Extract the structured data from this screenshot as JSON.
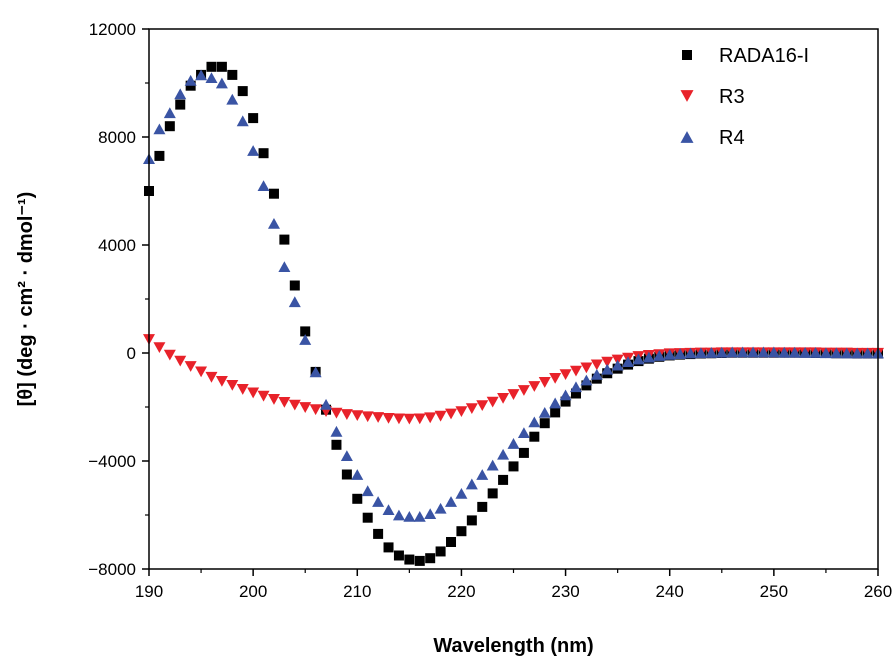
{
  "chart_data": {
    "type": "scatter",
    "title": "",
    "xlabel": "Wavelength (nm)",
    "ylabel": "[θ] (deg · cm² · dmol⁻¹)",
    "xlim": [
      190,
      260
    ],
    "ylim": [
      -8000,
      12000
    ],
    "xticks": [
      190,
      200,
      210,
      220,
      230,
      240,
      250,
      260
    ],
    "yticks": [
      -8000,
      -4000,
      0,
      4000,
      8000,
      12000
    ],
    "x_tick_labels": [
      "190",
      "200",
      "210",
      "220",
      "230",
      "240",
      "250",
      "260"
    ],
    "y_tick_labels": [
      "−8000",
      "−4000",
      "0",
      "4000",
      "8000",
      "12000"
    ],
    "legend_position": "top-right",
    "grid": false,
    "series": [
      {
        "name": "RADA16-I",
        "marker": "square",
        "color": "#000000",
        "x": [
          190,
          191,
          192,
          193,
          194,
          195,
          196,
          197,
          198,
          199,
          200,
          201,
          202,
          203,
          204,
          205,
          206,
          207,
          208,
          209,
          210,
          211,
          212,
          213,
          214,
          215,
          216,
          217,
          218,
          219,
          220,
          221,
          222,
          223,
          224,
          225,
          226,
          227,
          228,
          229,
          230,
          231,
          232,
          233,
          234,
          235,
          236,
          237,
          238,
          239,
          240,
          241,
          242,
          243,
          244,
          245,
          246,
          247,
          248,
          249,
          250,
          251,
          252,
          253,
          254,
          255,
          256,
          257,
          258,
          259,
          260
        ],
        "values": [
          6000,
          7300,
          8400,
          9200,
          9900,
          10300,
          10600,
          10600,
          10300,
          9700,
          8700,
          7400,
          5900,
          4200,
          2500,
          800,
          -700,
          -2100,
          -3400,
          -4500,
          -5400,
          -6100,
          -6700,
          -7200,
          -7500,
          -7650,
          -7700,
          -7600,
          -7350,
          -7000,
          -6600,
          -6200,
          -5700,
          -5200,
          -4700,
          -4200,
          -3700,
          -3100,
          -2600,
          -2200,
          -1800,
          -1500,
          -1200,
          -950,
          -750,
          -580,
          -430,
          -300,
          -210,
          -140,
          -90,
          -60,
          -40,
          -20,
          -10,
          0,
          10,
          10,
          10,
          10,
          10,
          10,
          10,
          10,
          0,
          0,
          -10,
          -10,
          -20,
          -20,
          -20
        ]
      },
      {
        "name": "R3",
        "marker": "triangle-down",
        "color": "#e8222a",
        "x": [
          190,
          191,
          192,
          193,
          194,
          195,
          196,
          197,
          198,
          199,
          200,
          201,
          202,
          203,
          204,
          205,
          206,
          207,
          208,
          209,
          210,
          211,
          212,
          213,
          214,
          215,
          216,
          217,
          218,
          219,
          220,
          221,
          222,
          223,
          224,
          225,
          226,
          227,
          228,
          229,
          230,
          231,
          232,
          233,
          234,
          235,
          236,
          237,
          238,
          239,
          240,
          241,
          242,
          243,
          244,
          245,
          246,
          247,
          248,
          249,
          250,
          251,
          252,
          253,
          254,
          255,
          256,
          257,
          258,
          259,
          260
        ],
        "values": [
          500,
          200,
          -80,
          -300,
          -500,
          -700,
          -900,
          -1050,
          -1200,
          -1350,
          -1480,
          -1600,
          -1720,
          -1830,
          -1930,
          -2020,
          -2100,
          -2170,
          -2230,
          -2280,
          -2320,
          -2360,
          -2390,
          -2420,
          -2440,
          -2450,
          -2440,
          -2400,
          -2340,
          -2260,
          -2170,
          -2060,
          -1950,
          -1820,
          -1680,
          -1540,
          -1390,
          -1240,
          -1090,
          -940,
          -800,
          -670,
          -550,
          -440,
          -340,
          -260,
          -190,
          -130,
          -90,
          -60,
          -30,
          -20,
          -10,
          0,
          0,
          10,
          10,
          10,
          10,
          10,
          10,
          10,
          10,
          10,
          10,
          0,
          0,
          0,
          -10,
          -10,
          -10
        ]
      },
      {
        "name": "R4",
        "marker": "triangle-up",
        "color": "#3a54a4",
        "x": [
          190,
          191,
          192,
          193,
          194,
          195,
          196,
          197,
          198,
          199,
          200,
          201,
          202,
          203,
          204,
          205,
          206,
          207,
          208,
          209,
          210,
          211,
          212,
          213,
          214,
          215,
          216,
          217,
          218,
          219,
          220,
          221,
          222,
          223,
          224,
          225,
          226,
          227,
          228,
          229,
          230,
          231,
          232,
          233,
          234,
          235,
          236,
          237,
          238,
          239,
          240,
          241,
          242,
          243,
          244,
          245,
          246,
          247,
          248,
          249,
          250,
          251,
          252,
          253,
          254,
          255,
          256,
          257,
          258,
          259,
          260
        ],
        "values": [
          7200,
          8300,
          8900,
          9600,
          10100,
          10300,
          10200,
          10000,
          9400,
          8600,
          7500,
          6200,
          4800,
          3200,
          1900,
          500,
          -700,
          -1900,
          -2900,
          -3800,
          -4500,
          -5100,
          -5500,
          -5800,
          -6000,
          -6050,
          -6050,
          -5950,
          -5750,
          -5500,
          -5200,
          -4850,
          -4500,
          -4150,
          -3750,
          -3350,
          -2950,
          -2550,
          -2200,
          -1850,
          -1550,
          -1250,
          -1000,
          -790,
          -600,
          -450,
          -320,
          -220,
          -150,
          -90,
          -50,
          -20,
          0,
          10,
          20,
          30,
          40,
          40,
          40,
          40,
          40,
          30,
          30,
          20,
          20,
          10,
          10,
          0,
          0,
          0,
          0
        ]
      }
    ]
  }
}
